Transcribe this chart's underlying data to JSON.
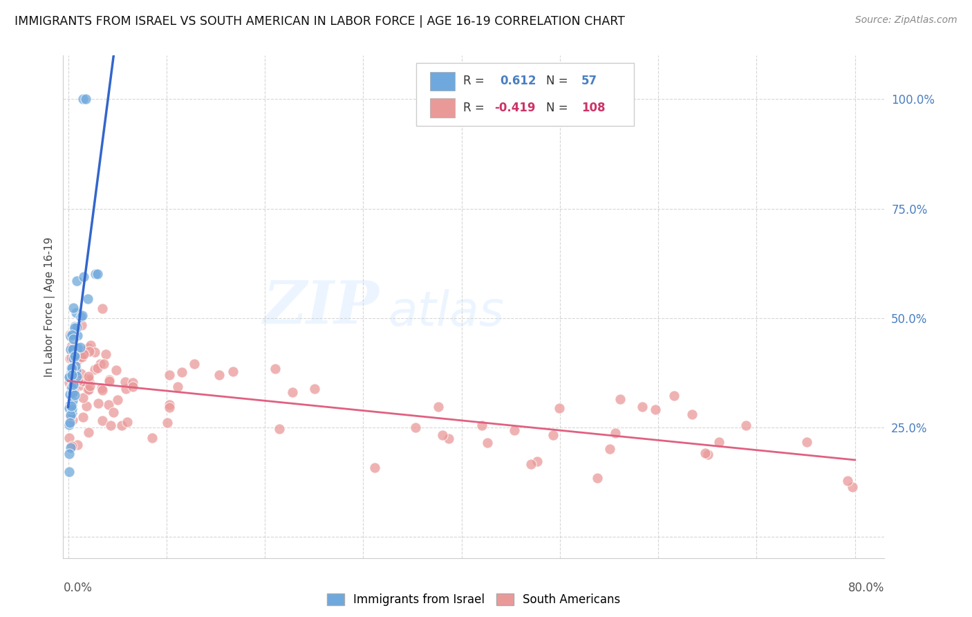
{
  "title": "IMMIGRANTS FROM ISRAEL VS SOUTH AMERICAN IN LABOR FORCE | AGE 16-19 CORRELATION CHART",
  "source": "Source: ZipAtlas.com",
  "ylabel": "In Labor Force | Age 16-19",
  "legend_israel_R": "0.612",
  "legend_israel_N": "57",
  "legend_south_R": "-0.419",
  "legend_south_N": "108",
  "watermark_zip": "ZIP",
  "watermark_atlas": "atlas",
  "blue_color": "#6fa8dc",
  "pink_color": "#ea9999",
  "blue_line_color": "#3366cc",
  "pink_line_color": "#e06080",
  "grid_color": "#cccccc",
  "right_axis_color": "#4a7fc1",
  "blue_trend_slope": 18.0,
  "blue_trend_intercept": 0.28,
  "pink_trend_slope": -0.22,
  "pink_trend_intercept": 0.365,
  "xlim_min": -0.005,
  "xlim_max": 0.83,
  "ylim_min": -0.05,
  "ylim_max": 1.1
}
